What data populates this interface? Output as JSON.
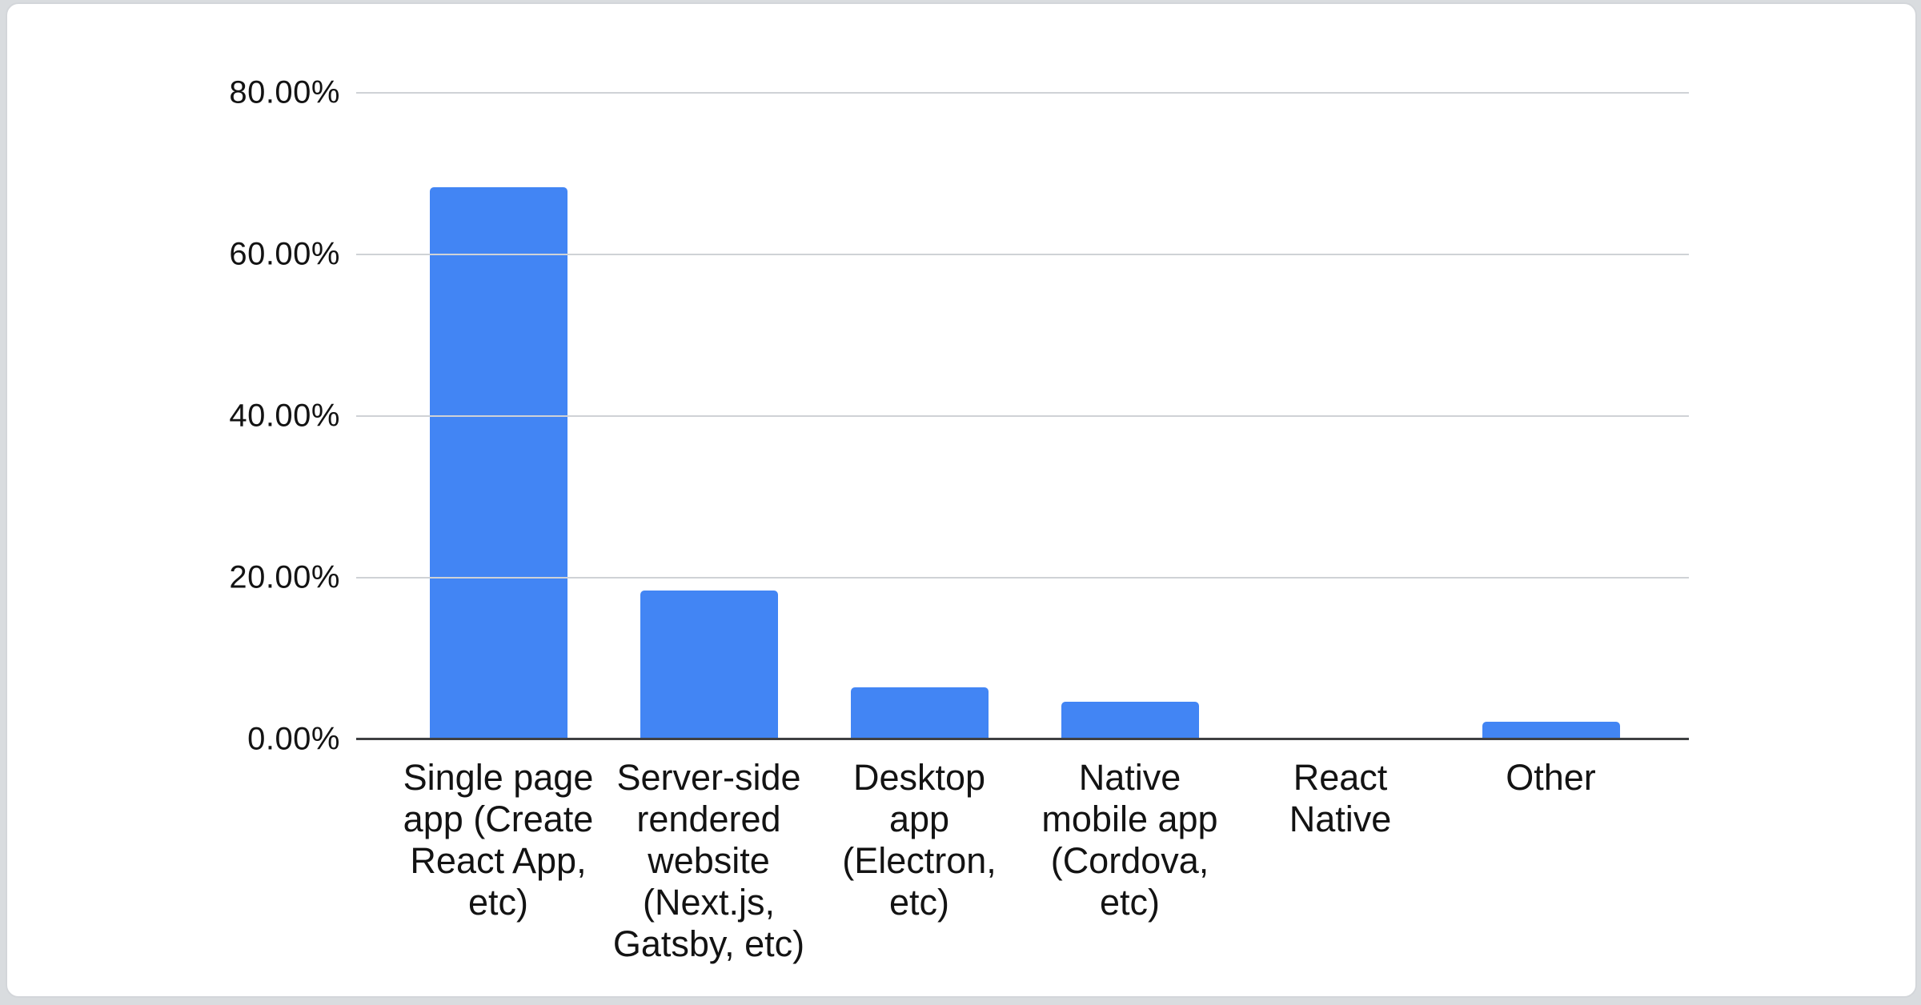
{
  "page": {
    "background_color": "#d9dcdf",
    "card_background_color": "#ffffff",
    "card_border_color": "#d3d6da"
  },
  "chart_data": {
    "type": "bar",
    "title": "",
    "xlabel": "",
    "ylabel": "",
    "legend": "none",
    "grid": true,
    "categories": [
      "Single page app (Create React App, etc)",
      "Server-side rendered website (Next.js, Gatsby, etc)",
      "Desktop app (Electron, etc)",
      "Native mobile app (Cordova, etc)",
      "React Native",
      "Other"
    ],
    "category_display_lines": [
      [
        "Single page",
        "app (Create",
        "React App,",
        "etc)"
      ],
      [
        "Server-side",
        "rendered",
        "website",
        "(Next.js,",
        "Gatsby, etc)"
      ],
      [
        "Desktop",
        "app",
        "(Electron,",
        "etc)"
      ],
      [
        "Native",
        "mobile app",
        "(Cordova,",
        "etc)"
      ],
      [
        "React",
        "Native"
      ],
      [
        "Other"
      ]
    ],
    "values": [
      68.3,
      18.4,
      6.4,
      4.7,
      0,
      2.2
    ],
    "value_unit": "percent",
    "ylim": [
      0,
      80
    ],
    "yticks": [
      {
        "value": 80,
        "label": "80.00%"
      },
      {
        "value": 60,
        "label": "60.00%"
      },
      {
        "value": 40,
        "label": "40.00%"
      },
      {
        "value": 20,
        "label": "20.00%"
      },
      {
        "value": 0,
        "label": "0.00%"
      }
    ],
    "bar_color": "#4285f4",
    "gridline_color": "#cfd2d6",
    "axis_line_color": "#3f4042",
    "label_color": "#131313"
  }
}
